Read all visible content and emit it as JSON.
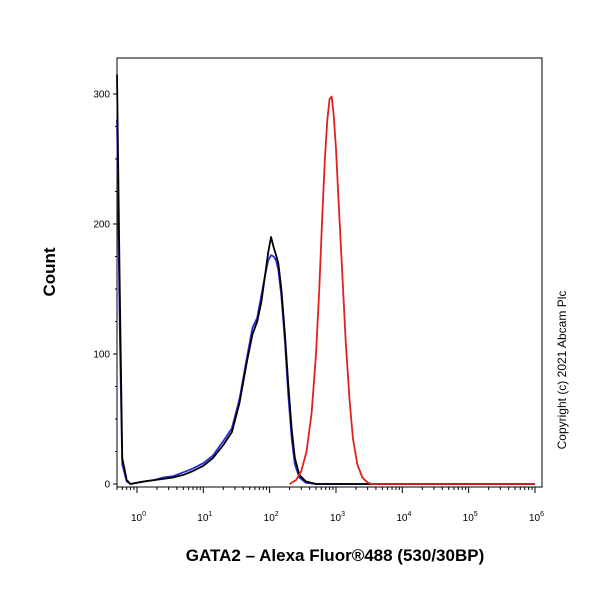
{
  "chart_data": {
    "type": "line",
    "title": "",
    "xlabel": "GATA2 – Alexa Fluor®488 (530/30BP)",
    "ylabel": "Count",
    "x_scale": "log",
    "xlim": [
      0.5,
      1000000
    ],
    "ylim": [
      0,
      320
    ],
    "x_ticks": [
      {
        "value": 1,
        "base": "10",
        "exp": "0"
      },
      {
        "value": 10,
        "base": "10",
        "exp": "1"
      },
      {
        "value": 100,
        "base": "10",
        "exp": "2"
      },
      {
        "value": 1000,
        "base": "10",
        "exp": "3"
      },
      {
        "value": 10000,
        "base": "10",
        "exp": "4"
      },
      {
        "value": 100000,
        "base": "10",
        "exp": "5"
      },
      {
        "value": 1000000,
        "base": "10",
        "exp": "6"
      }
    ],
    "y_ticks": [
      {
        "value": 0,
        "label": "0"
      },
      {
        "value": 100,
        "label": "100"
      },
      {
        "value": 200,
        "label": "200"
      },
      {
        "value": 300,
        "label": "300"
      }
    ],
    "grid": false,
    "legend": "none",
    "annotation": "Copyright (c) 2021 Abcam Plc",
    "series": [
      {
        "color": "#2a2ad8",
        "points": [
          [
            0.5,
            280
          ],
          [
            0.55,
            120
          ],
          [
            0.6,
            15
          ],
          [
            0.7,
            2
          ],
          [
            0.8,
            0
          ],
          [
            1,
            1
          ],
          [
            1.3,
            2
          ],
          [
            1.8,
            3
          ],
          [
            2.5,
            5
          ],
          [
            3.5,
            6
          ],
          [
            5,
            9
          ],
          [
            7,
            12
          ],
          [
            10,
            16
          ],
          [
            14,
            22
          ],
          [
            20,
            33
          ],
          [
            27,
            43
          ],
          [
            35,
            65
          ],
          [
            45,
            96
          ],
          [
            55,
            120
          ],
          [
            65,
            128
          ],
          [
            75,
            145
          ],
          [
            85,
            160
          ],
          [
            95,
            172
          ],
          [
            105,
            176
          ],
          [
            115,
            175
          ],
          [
            125,
            172
          ],
          [
            135,
            165
          ],
          [
            150,
            145
          ],
          [
            170,
            110
          ],
          [
            190,
            70
          ],
          [
            215,
            35
          ],
          [
            240,
            15
          ],
          [
            280,
            5
          ],
          [
            350,
            1
          ],
          [
            500,
            0
          ],
          [
            1000000,
            0
          ]
        ]
      },
      {
        "color": "#000000",
        "points": [
          [
            0.5,
            315
          ],
          [
            0.55,
            150
          ],
          [
            0.6,
            20
          ],
          [
            0.7,
            3
          ],
          [
            0.8,
            0
          ],
          [
            1,
            1
          ],
          [
            1.3,
            2
          ],
          [
            1.8,
            3
          ],
          [
            2.5,
            4
          ],
          [
            3.5,
            5
          ],
          [
            5,
            7
          ],
          [
            7,
            10
          ],
          [
            10,
            14
          ],
          [
            14,
            20
          ],
          [
            20,
            30
          ],
          [
            27,
            40
          ],
          [
            35,
            62
          ],
          [
            45,
            93
          ],
          [
            55,
            115
          ],
          [
            65,
            125
          ],
          [
            75,
            140
          ],
          [
            85,
            160
          ],
          [
            95,
            178
          ],
          [
            105,
            190
          ],
          [
            115,
            182
          ],
          [
            125,
            176
          ],
          [
            135,
            170
          ],
          [
            150,
            150
          ],
          [
            170,
            115
          ],
          [
            190,
            78
          ],
          [
            215,
            42
          ],
          [
            240,
            20
          ],
          [
            280,
            7
          ],
          [
            350,
            2
          ],
          [
            500,
            0
          ],
          [
            1000000,
            0
          ]
        ]
      },
      {
        "color": "#e02020",
        "points": [
          [
            200,
            0
          ],
          [
            250,
            3
          ],
          [
            300,
            10
          ],
          [
            360,
            25
          ],
          [
            430,
            55
          ],
          [
            500,
            100
          ],
          [
            560,
            150
          ],
          [
            620,
            205
          ],
          [
            680,
            250
          ],
          [
            740,
            280
          ],
          [
            800,
            296
          ],
          [
            860,
            298
          ],
          [
            920,
            285
          ],
          [
            1000,
            258
          ],
          [
            1100,
            215
          ],
          [
            1250,
            160
          ],
          [
            1400,
            110
          ],
          [
            1600,
            65
          ],
          [
            1800,
            35
          ],
          [
            2100,
            15
          ],
          [
            2500,
            5
          ],
          [
            3000,
            1
          ],
          [
            3500,
            0
          ],
          [
            1000000,
            0
          ]
        ]
      }
    ]
  }
}
